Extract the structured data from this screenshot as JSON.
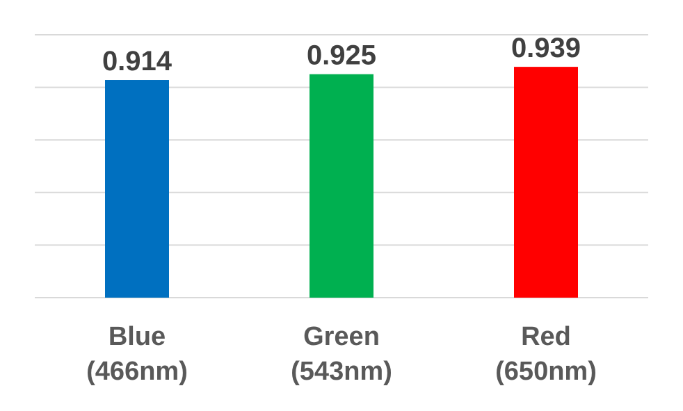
{
  "chart_data": {
    "type": "bar",
    "categories": [
      [
        "Blue",
        "(466nm)"
      ],
      [
        "Green",
        "(543nm)"
      ],
      [
        "Red",
        "(650nm)"
      ]
    ],
    "values": [
      0.914,
      0.925,
      0.939
    ],
    "value_labels": [
      "0.914",
      "0.925",
      "0.939"
    ],
    "colors": [
      "#0070c0",
      "#00b050",
      "#ff0000"
    ],
    "ylim": [
      0.5,
      1.0
    ],
    "grid": true,
    "gridline_count": 6,
    "legend": "none"
  }
}
